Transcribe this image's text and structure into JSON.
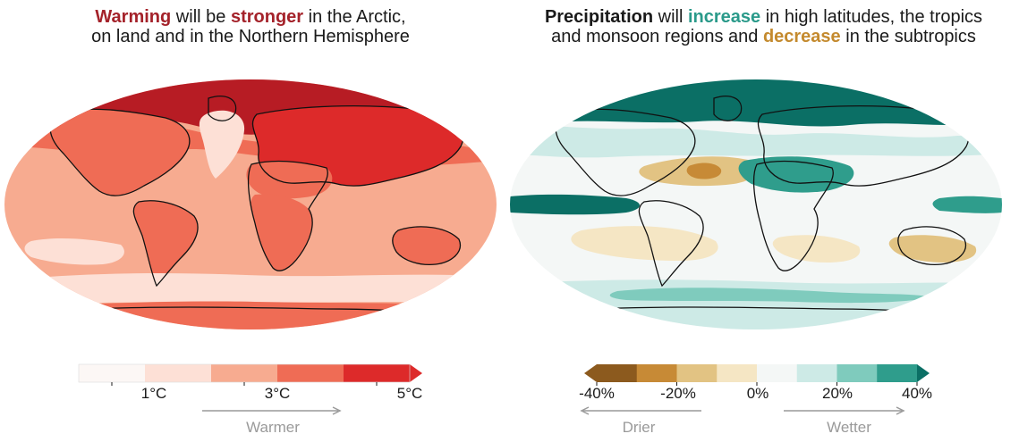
{
  "left": {
    "title": {
      "w1": "Warming",
      "t1": " will be ",
      "w2": "stronger",
      "t2": " in the Arctic,",
      "line2": "on land and in the Northern Hemisphere"
    },
    "colors": {
      "emphasis": "#a4222a",
      "bins": [
        "#fcf7f5",
        "#fde0d6",
        "#f7ab90",
        "#ef6c55",
        "#dd2a2a",
        "#b71c24"
      ]
    },
    "legend": {
      "ticks": [
        "1°C",
        "3°C",
        "5°C"
      ],
      "direction": "Warmer"
    }
  },
  "right": {
    "title": {
      "w1": "Precipitation",
      "t1": " will ",
      "w2": "increase",
      "t2": " in high latitudes, the tropics",
      "line2a": "and monsoon regions and ",
      "w3": "decrease",
      "line2b": " in the subtropics"
    },
    "colors": {
      "increase": "#2a9a8a",
      "decrease": "#c48a2e",
      "bins": [
        "#8c5a1e",
        "#c78a36",
        "#e2c383",
        "#f5e6c4",
        "#f4f7f6",
        "#cdeae6",
        "#7fcbbd",
        "#2f9d8c",
        "#0b6f65"
      ]
    },
    "legend": {
      "ticks": [
        "-40%",
        "-20%",
        "0%",
        "20%",
        "40%"
      ],
      "direction_left": "Drier",
      "direction_right": "Wetter"
    }
  }
}
